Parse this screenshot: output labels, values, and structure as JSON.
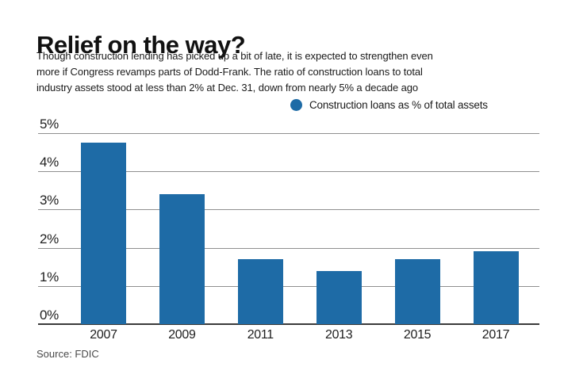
{
  "header": {
    "title": "Relief on the way?",
    "subtitle_lines": [
      "Though construction lending has picked up a bit of late, it is expected to strengthen even",
      "more if Congress revamps parts of Dodd-Frank. The ratio of construction loans to total",
      "industry assets stood at less than 2% at Dec. 31, down from nearly 5% a decade ago"
    ]
  },
  "legend": {
    "label": "Construction loans as % of total assets",
    "marker_color": "#1e6ba6"
  },
  "chart_data": {
    "type": "bar",
    "title": "Relief on the way?",
    "categories": [
      "2007",
      "2009",
      "2011",
      "2013",
      "2015",
      "2017"
    ],
    "values": [
      4.75,
      3.4,
      1.7,
      1.4,
      1.7,
      1.9
    ],
    "series_label": "Construction loans as % of total assets",
    "xlabel": "",
    "ylabel": "Construction loans as % of total assets",
    "ylim": [
      0,
      5
    ],
    "yticks": [
      "0%",
      "1%",
      "2%",
      "3%",
      "4%",
      "5%"
    ],
    "ytick_values": [
      0,
      1,
      2,
      3,
      4,
      5
    ],
    "grid": "horizontal",
    "legend_position": "top-right",
    "bar_color": "#1e6ba6",
    "gridline_color": "#8f8f8f",
    "axis_color": "#3a3a3a",
    "text_color": "#1e1e1e"
  },
  "footer": {
    "source": "Source: FDIC"
  }
}
